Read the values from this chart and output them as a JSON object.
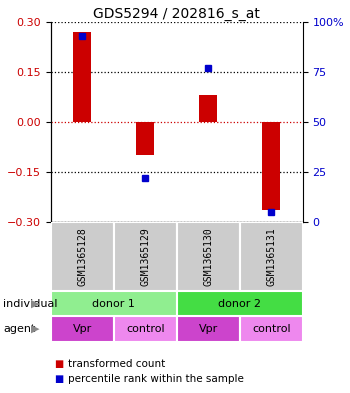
{
  "title": "GDS5294 / 202816_s_at",
  "samples": [
    "GSM1365128",
    "GSM1365129",
    "GSM1365130",
    "GSM1365131"
  ],
  "bar_values": [
    0.27,
    -0.1,
    0.08,
    -0.265
  ],
  "dot_percentiles": [
    93,
    22,
    77,
    5
  ],
  "ylim": [
    -0.3,
    0.3
  ],
  "y_left_ticks": [
    -0.3,
    -0.15,
    0,
    0.15,
    0.3
  ],
  "y_right_ticks": [
    0,
    25,
    50,
    75,
    100
  ],
  "bar_color": "#cc0000",
  "dot_color": "#0000cc",
  "zero_line_color": "#cc0000",
  "grid_color": "#000000",
  "individual_colors_left": "#90ee90",
  "individual_colors_right": "#44dd44",
  "agent_color_vpr": "#cc44cc",
  "agent_color_control": "#ee88ee",
  "sample_bg_color": "#cccccc",
  "legend_bar_label": "transformed count",
  "legend_dot_label": "percentile rank within the sample",
  "individual_label": "individual",
  "agent_label": "agent",
  "title_fontsize": 10,
  "tick_fontsize": 8,
  "sample_fontsize": 7,
  "table_fontsize": 8,
  "legend_fontsize": 7.5
}
